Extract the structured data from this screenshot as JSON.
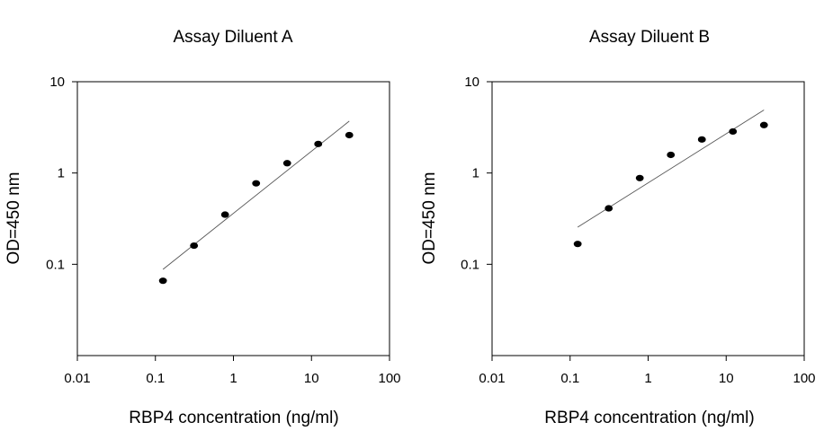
{
  "chart_data": [
    {
      "type": "scatter",
      "title": "Assay Diluent A",
      "xlabel": "RBP4 concentration (ng/ml)",
      "ylabel": "OD=450 nm",
      "xscale": "log",
      "yscale": "log",
      "xlim": [
        0.01,
        100
      ],
      "ylim": [
        0.01,
        10
      ],
      "xticks": [
        "0.01",
        "0.1",
        "1",
        "10",
        "100"
      ],
      "yticks": [
        "0.1",
        "1",
        "10"
      ],
      "grid": false,
      "series": [
        {
          "x": [
            0.125,
            0.3125,
            0.78125,
            1.953,
            4.883,
            12.2,
            30.5
          ],
          "y": [
            0.066,
            0.16,
            0.35,
            0.77,
            1.28,
            2.08,
            2.6
          ]
        }
      ],
      "fit_line": {
        "x": [
          0.125,
          30.5
        ],
        "y": [
          0.088,
          3.7
        ]
      }
    },
    {
      "type": "scatter",
      "title": "Assay Diluent B",
      "xlabel": "RBP4 concentration (ng/ml)",
      "ylabel": "OD=450 nm",
      "xscale": "log",
      "yscale": "log",
      "xlim": [
        0.01,
        100
      ],
      "ylim": [
        0.01,
        10
      ],
      "xticks": [
        "0.01",
        "0.1",
        "1",
        "10",
        "100"
      ],
      "yticks": [
        "0.1",
        "1",
        "10"
      ],
      "grid": false,
      "series": [
        {
          "x": [
            0.125,
            0.3125,
            0.78125,
            1.953,
            4.883,
            12.2,
            30.5
          ],
          "y": [
            0.167,
            0.41,
            0.88,
            1.58,
            2.33,
            2.85,
            3.35
          ]
        }
      ],
      "fit_line": {
        "x": [
          0.125,
          30.5
        ],
        "y": [
          0.255,
          4.9
        ]
      }
    }
  ]
}
